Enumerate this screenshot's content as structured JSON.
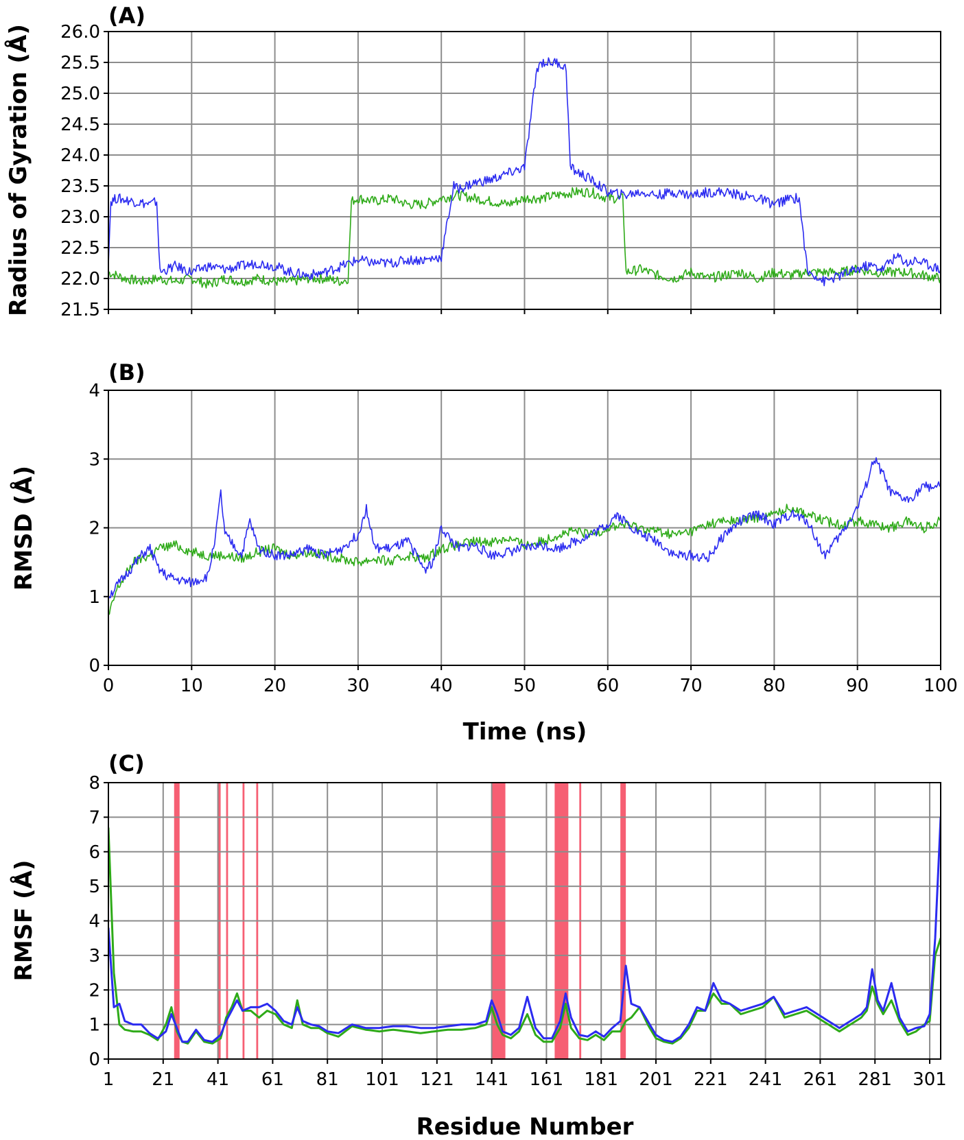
{
  "colors": {
    "blue": "#2b2bf0",
    "green": "#2eaa18",
    "grid": "#8c8c8c",
    "highlight": "#f5566b",
    "frame": "#000000"
  },
  "chart_data": [
    {
      "type": "line",
      "panel_label": "(A)",
      "title": "",
      "xlabel": "",
      "ylabel": "Radius of Gyration (Å)",
      "xlim": [
        0,
        100
      ],
      "ylim": [
        21.5,
        26.0
      ],
      "xticks": [
        0,
        10,
        20,
        30,
        40,
        50,
        60,
        70,
        80,
        90,
        100
      ],
      "xtick_labels": [],
      "yticks": [
        21.5,
        22.0,
        22.5,
        23.0,
        23.5,
        24.0,
        24.5,
        25.0,
        25.5,
        26.0
      ],
      "ytick_labels": [
        "21.5",
        "22.0",
        "22.5",
        "23.0",
        "23.5",
        "24.0",
        "24.5",
        "25.0",
        "25.5",
        "26.0"
      ],
      "grid": true,
      "series": [
        {
          "name": "green",
          "color": "#2eaa18",
          "x": [
            0,
            2,
            4,
            6,
            8,
            10,
            12,
            14,
            16,
            18,
            20,
            22,
            24,
            26,
            28,
            28.8,
            29.2,
            30,
            32,
            34,
            36,
            38,
            40,
            42,
            44,
            46,
            48,
            50,
            52,
            54,
            56,
            58,
            60,
            61.8,
            62.2,
            64,
            66,
            68,
            70,
            72,
            74,
            76,
            78,
            80,
            82,
            84,
            86,
            88,
            90,
            92,
            94,
            96,
            98,
            100
          ],
          "values": [
            22.1,
            22.0,
            21.95,
            22.0,
            21.95,
            22.0,
            21.9,
            22.0,
            21.95,
            22.0,
            21.95,
            21.95,
            22.0,
            22.0,
            21.95,
            22.0,
            23.25,
            23.3,
            23.25,
            23.3,
            23.2,
            23.2,
            23.3,
            23.35,
            23.3,
            23.25,
            23.2,
            23.3,
            23.3,
            23.35,
            23.4,
            23.4,
            23.3,
            23.3,
            22.1,
            22.15,
            22.05,
            22.0,
            22.1,
            22.0,
            22.05,
            22.1,
            22.0,
            22.1,
            22.05,
            22.1,
            22.1,
            22.1,
            22.15,
            22.1,
            22.1,
            22.1,
            22.05,
            22.0
          ]
        },
        {
          "name": "blue",
          "color": "#2b2bf0",
          "x": [
            0,
            0.3,
            1,
            3,
            5,
            5.8,
            6.2,
            8,
            10,
            12,
            14,
            16,
            18,
            20,
            22,
            24,
            26,
            28,
            30,
            32,
            34,
            36,
            38,
            40,
            41.5,
            42,
            43,
            44,
            46,
            48,
            50,
            51.5,
            52,
            53,
            54,
            55,
            55.5,
            56,
            58,
            60,
            62,
            64,
            66,
            68,
            70,
            72,
            74,
            76,
            78,
            80,
            82,
            83,
            84,
            85,
            86,
            88,
            90,
            91,
            92,
            93,
            94,
            95,
            96,
            97,
            98,
            99,
            100
          ],
          "values": [
            22.3,
            23.25,
            23.3,
            23.25,
            23.2,
            23.25,
            22.1,
            22.2,
            22.1,
            22.2,
            22.15,
            22.2,
            22.25,
            22.2,
            22.1,
            22.05,
            22.1,
            22.2,
            22.3,
            22.25,
            22.25,
            22.3,
            22.3,
            22.35,
            23.5,
            23.45,
            23.5,
            23.55,
            23.6,
            23.7,
            23.8,
            25.4,
            25.5,
            25.5,
            25.5,
            25.4,
            23.8,
            23.75,
            23.6,
            23.4,
            23.35,
            23.4,
            23.35,
            23.4,
            23.35,
            23.4,
            23.4,
            23.35,
            23.3,
            23.2,
            23.3,
            23.3,
            22.1,
            22.05,
            21.95,
            22.05,
            22.15,
            22.2,
            22.2,
            22.15,
            22.3,
            22.35,
            22.25,
            22.3,
            22.25,
            22.2,
            22.15
          ]
        }
      ]
    },
    {
      "type": "line",
      "panel_label": "(B)",
      "title": "",
      "xlabel": "Time (ns)",
      "ylabel": "RMSD (Å)",
      "xlim": [
        0,
        100
      ],
      "ylim": [
        0,
        4
      ],
      "xticks": [
        0,
        10,
        20,
        30,
        40,
        50,
        60,
        70,
        80,
        90,
        100
      ],
      "xtick_labels": [
        "0",
        "10",
        "20",
        "30",
        "40",
        "50",
        "60",
        "70",
        "80",
        "90",
        "100"
      ],
      "yticks": [
        0,
        1,
        2,
        3,
        4
      ],
      "ytick_labels": [
        "0",
        "1",
        "2",
        "3",
        "4"
      ],
      "grid": true,
      "series": [
        {
          "name": "green",
          "color": "#2eaa18",
          "x": [
            0,
            1,
            2,
            3,
            4,
            5,
            6,
            8,
            10,
            12,
            14,
            16,
            18,
            20,
            22,
            24,
            26,
            28,
            30,
            32,
            34,
            36,
            38,
            40,
            42,
            44,
            46,
            48,
            50,
            52,
            54,
            56,
            58,
            60,
            62,
            64,
            66,
            68,
            70,
            72,
            74,
            76,
            78,
            80,
            82,
            84,
            86,
            88,
            90,
            92,
            94,
            96,
            98,
            100
          ],
          "values": [
            0.7,
            1.1,
            1.3,
            1.5,
            1.55,
            1.6,
            1.7,
            1.75,
            1.65,
            1.6,
            1.6,
            1.55,
            1.65,
            1.7,
            1.6,
            1.65,
            1.6,
            1.55,
            1.5,
            1.55,
            1.5,
            1.6,
            1.55,
            1.7,
            1.75,
            1.8,
            1.8,
            1.85,
            1.75,
            1.8,
            1.9,
            1.95,
            1.9,
            2.0,
            2.05,
            2.0,
            1.95,
            1.9,
            1.95,
            2.05,
            2.1,
            2.1,
            2.15,
            2.2,
            2.3,
            2.2,
            2.1,
            2.05,
            2.1,
            2.05,
            2.0,
            2.1,
            2.0,
            2.1
          ]
        },
        {
          "name": "blue",
          "color": "#2b2bf0",
          "x": [
            0,
            1,
            2,
            3,
            4,
            5,
            6,
            7,
            8,
            10,
            12,
            13,
            13.5,
            14,
            16,
            17,
            18,
            20,
            22,
            24,
            26,
            28,
            30,
            31,
            32,
            34,
            36,
            38,
            39,
            40,
            42,
            44,
            46,
            48,
            50,
            52,
            54,
            56,
            58,
            60,
            61,
            62,
            64,
            66,
            68,
            70,
            72,
            74,
            76,
            78,
            80,
            82,
            84,
            86,
            88,
            90,
            91,
            92,
            93,
            94,
            96,
            98,
            100
          ],
          "values": [
            1.0,
            1.15,
            1.3,
            1.45,
            1.6,
            1.7,
            1.4,
            1.3,
            1.25,
            1.2,
            1.3,
            2.0,
            2.5,
            1.9,
            1.6,
            2.1,
            1.7,
            1.6,
            1.6,
            1.7,
            1.6,
            1.7,
            1.9,
            2.3,
            1.7,
            1.7,
            1.8,
            1.4,
            1.5,
            2.0,
            1.7,
            1.75,
            1.6,
            1.65,
            1.7,
            1.75,
            1.7,
            1.8,
            1.9,
            2.05,
            2.2,
            2.1,
            1.9,
            1.8,
            1.6,
            1.6,
            1.55,
            1.9,
            2.1,
            2.2,
            2.05,
            2.2,
            2.1,
            1.6,
            1.9,
            2.3,
            2.6,
            3.0,
            2.8,
            2.5,
            2.4,
            2.6,
            2.6
          ]
        }
      ]
    },
    {
      "type": "line",
      "panel_label": "(C)",
      "title": "",
      "xlabel": "Residue Number",
      "ylabel": "RMSF (Å)",
      "xlim": [
        1,
        305
      ],
      "ylim": [
        0,
        8
      ],
      "xticks": [
        1,
        21,
        41,
        61,
        81,
        101,
        121,
        141,
        161,
        181,
        201,
        221,
        241,
        261,
        281,
        301
      ],
      "xtick_labels": [
        "1",
        "21",
        "41",
        "61",
        "81",
        "101",
        "121",
        "141",
        "161",
        "181",
        "201",
        "221",
        "241",
        "261",
        "281",
        "301"
      ],
      "yticks": [
        0,
        1,
        2,
        3,
        4,
        5,
        6,
        7,
        8
      ],
      "ytick_labels": [
        "0",
        "1",
        "2",
        "3",
        "4",
        "5",
        "6",
        "7",
        "8"
      ],
      "grid": true,
      "highlight_ranges": [
        [
          25,
          27
        ],
        [
          41,
          42
        ],
        [
          44,
          44.7
        ],
        [
          50,
          50.7
        ],
        [
          55,
          55.7
        ],
        [
          141,
          146
        ],
        [
          164,
          169
        ],
        [
          173,
          173.7
        ],
        [
          188,
          190
        ]
      ],
      "series": [
        {
          "name": "green",
          "color": "#2eaa18",
          "x": [
            1,
            3,
            5,
            7,
            10,
            13,
            16,
            19,
            22,
            24,
            26,
            28,
            30,
            33,
            36,
            39,
            42,
            44,
            46,
            48,
            50,
            53,
            56,
            59,
            62,
            65,
            68,
            70,
            72,
            75,
            78,
            81,
            85,
            90,
            95,
            100,
            105,
            110,
            115,
            120,
            125,
            130,
            135,
            139,
            141,
            143,
            145,
            148,
            151,
            154,
            157,
            160,
            163,
            166,
            168,
            170,
            173,
            176,
            179,
            182,
            185,
            188,
            190,
            192,
            195,
            198,
            201,
            204,
            207,
            210,
            213,
            216,
            219,
            222,
            225,
            228,
            232,
            236,
            240,
            244,
            248,
            252,
            256,
            260,
            264,
            268,
            272,
            276,
            278,
            280,
            282,
            284,
            287,
            290,
            293,
            296,
            299,
            301,
            303,
            305
          ],
          "values": [
            6.7,
            2.5,
            1.0,
            0.85,
            0.8,
            0.8,
            0.7,
            0.55,
            1.0,
            1.5,
            0.8,
            0.5,
            0.45,
            0.8,
            0.5,
            0.45,
            0.6,
            1.2,
            1.5,
            1.9,
            1.4,
            1.4,
            1.2,
            1.4,
            1.3,
            1.0,
            0.9,
            1.7,
            1.0,
            0.9,
            0.9,
            0.75,
            0.65,
            0.95,
            0.85,
            0.8,
            0.85,
            0.8,
            0.75,
            0.8,
            0.85,
            0.85,
            0.9,
            1.0,
            1.5,
            1.0,
            0.7,
            0.6,
            0.8,
            1.3,
            0.7,
            0.5,
            0.5,
            0.9,
            1.6,
            0.9,
            0.6,
            0.55,
            0.7,
            0.55,
            0.8,
            0.8,
            1.1,
            1.2,
            1.5,
            1.0,
            0.6,
            0.5,
            0.45,
            0.6,
            0.9,
            1.4,
            1.4,
            1.9,
            1.6,
            1.6,
            1.3,
            1.4,
            1.5,
            1.8,
            1.2,
            1.3,
            1.4,
            1.2,
            1.0,
            0.8,
            1.0,
            1.2,
            1.4,
            2.1,
            1.6,
            1.3,
            1.7,
            1.1,
            0.7,
            0.8,
            1.0,
            1.1,
            3.0,
            3.5
          ]
        },
        {
          "name": "blue",
          "color": "#2b2bf0",
          "x": [
            1,
            3,
            5,
            7,
            10,
            13,
            16,
            19,
            22,
            24,
            26,
            28,
            30,
            33,
            36,
            39,
            42,
            44,
            46,
            48,
            50,
            53,
            56,
            59,
            62,
            65,
            68,
            70,
            72,
            75,
            78,
            81,
            85,
            90,
            95,
            100,
            105,
            110,
            115,
            120,
            125,
            130,
            135,
            139,
            141,
            143,
            145,
            148,
            151,
            154,
            157,
            160,
            163,
            166,
            168,
            170,
            173,
            176,
            179,
            182,
            185,
            188,
            190,
            192,
            195,
            198,
            201,
            204,
            207,
            210,
            213,
            216,
            219,
            222,
            225,
            228,
            232,
            236,
            240,
            244,
            248,
            252,
            256,
            260,
            264,
            268,
            272,
            276,
            278,
            280,
            282,
            284,
            287,
            290,
            293,
            296,
            299,
            301,
            303,
            305
          ],
          "values": [
            3.8,
            1.5,
            1.6,
            1.1,
            1.0,
            1.0,
            0.75,
            0.6,
            0.8,
            1.3,
            0.9,
            0.5,
            0.5,
            0.85,
            0.55,
            0.5,
            0.7,
            1.1,
            1.4,
            1.7,
            1.4,
            1.5,
            1.5,
            1.6,
            1.4,
            1.1,
            1.0,
            1.5,
            1.1,
            1.0,
            0.95,
            0.8,
            0.75,
            1.0,
            0.9,
            0.9,
            0.95,
            0.95,
            0.9,
            0.9,
            0.95,
            1.0,
            1.0,
            1.1,
            1.7,
            1.3,
            0.8,
            0.7,
            0.9,
            1.8,
            0.9,
            0.6,
            0.6,
            1.1,
            1.9,
            1.2,
            0.7,
            0.65,
            0.8,
            0.65,
            0.9,
            1.1,
            2.7,
            1.6,
            1.5,
            1.1,
            0.7,
            0.55,
            0.5,
            0.65,
            1.0,
            1.5,
            1.4,
            2.2,
            1.7,
            1.6,
            1.4,
            1.5,
            1.6,
            1.8,
            1.3,
            1.4,
            1.5,
            1.3,
            1.1,
            0.9,
            1.1,
            1.3,
            1.5,
            2.6,
            1.7,
            1.4,
            2.2,
            1.2,
            0.8,
            0.9,
            0.95,
            1.3,
            3.5,
            7.0
          ]
        }
      ]
    }
  ]
}
